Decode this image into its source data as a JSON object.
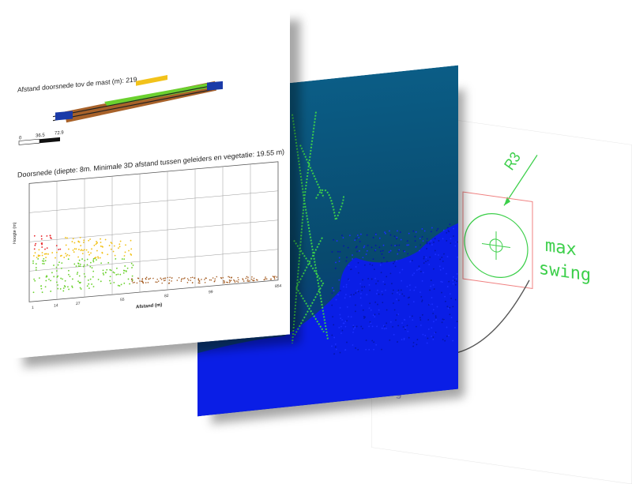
{
  "report": {
    "distance_label": "Afstand doorsnede tov de mast (m): 219",
    "scale_ticks": [
      "0",
      "36.5",
      "72.9"
    ],
    "section_title": "Doorsnede (diepte: 8m. Minimale 3D afstand tussen geleiders en vegetatie: 19.55 m)",
    "x_axis_label": "Afstand (m)",
    "y_axis_label": "Hoogte (m)",
    "x_ticks": [
      "1",
      "14",
      "27",
      "",
      "55",
      "",
      "82",
      "",
      "99",
      "",
      "",
      "854"
    ]
  },
  "cad": {
    "radius_label": "R3",
    "swing_label_line1": "max",
    "swing_label_line2": "swing",
    "sag_label": "sag"
  },
  "colors": {
    "cad_green": "#3ccf4a",
    "cad_red": "#f08080",
    "cloud_blue": "#0a1ee6",
    "cloud_teal": "#0b5d86",
    "vegetation_red": "#e8262a",
    "vegetation_yellow": "#f2c21a",
    "vegetation_green": "#6bd12f",
    "ground_brown": "#a8622a"
  }
}
